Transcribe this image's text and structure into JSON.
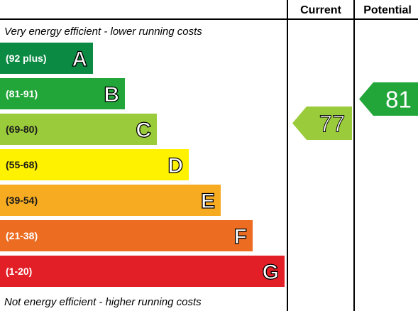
{
  "headers": {
    "current": "Current",
    "potential": "Potential"
  },
  "captions": {
    "top": "Very energy efficient - lower running costs",
    "bottom": "Not energy efficient - higher running costs"
  },
  "chart_data": {
    "type": "bar",
    "bands": [
      {
        "letter": "A",
        "range": "(92 plus)",
        "color": "#0b8a43",
        "dark_text": false
      },
      {
        "letter": "B",
        "range": "(81-91)",
        "color": "#22a63a",
        "dark_text": false
      },
      {
        "letter": "C",
        "range": "(69-80)",
        "color": "#9acb3b",
        "dark_text": true
      },
      {
        "letter": "D",
        "range": "(55-68)",
        "color": "#fff200",
        "dark_text": true
      },
      {
        "letter": "E",
        "range": "(39-54)",
        "color": "#f6ab20",
        "dark_text": true
      },
      {
        "letter": "F",
        "range": "(21-38)",
        "color": "#ec6c22",
        "dark_text": false
      },
      {
        "letter": "G",
        "range": "(1-20)",
        "color": "#e21f26",
        "dark_text": false
      }
    ],
    "current": {
      "value": 77,
      "band": "C",
      "color": "#9acb3b"
    },
    "potential": {
      "value": 81,
      "band": "B",
      "color": "#22a63a"
    }
  }
}
